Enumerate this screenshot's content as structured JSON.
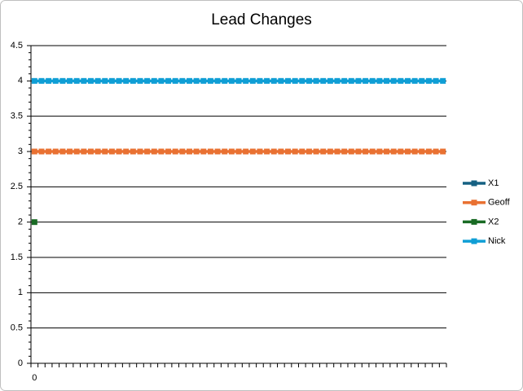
{
  "chart_data": {
    "type": "line",
    "title": "Lead Changes",
    "categories": [
      "0",
      null,
      null,
      null,
      null,
      null,
      null,
      null,
      null,
      null,
      null,
      null,
      null,
      null,
      null,
      null,
      null,
      null,
      null,
      null,
      null,
      null,
      null,
      null,
      null,
      null,
      null,
      null,
      null,
      null,
      null,
      null,
      null,
      null,
      null,
      null,
      null,
      null,
      null,
      null,
      null,
      null,
      null,
      null,
      null,
      null,
      null,
      null,
      null,
      null,
      null,
      null,
      null,
      null,
      null,
      null,
      null,
      null,
      null
    ],
    "series": [
      {
        "name": "X1",
        "color": "#156082",
        "values": [
          null,
          null,
          null,
          null,
          null,
          null,
          null,
          null,
          null,
          null,
          null,
          null,
          null,
          null,
          null,
          null,
          null,
          null,
          null,
          null,
          null,
          null,
          null,
          null,
          null,
          null,
          null,
          null,
          null,
          null,
          null,
          null,
          null,
          null,
          null,
          null,
          null,
          null,
          null,
          null,
          null,
          null,
          null,
          null,
          null,
          null,
          null,
          null,
          null,
          null,
          null,
          null,
          null,
          null,
          null,
          null,
          null,
          null,
          null
        ]
      },
      {
        "name": "Geoff",
        "color": "#e97132",
        "values": [
          3,
          3,
          3,
          3,
          3,
          3,
          3,
          3,
          3,
          3,
          3,
          3,
          3,
          3,
          3,
          3,
          3,
          3,
          3,
          3,
          3,
          3,
          3,
          3,
          3,
          3,
          3,
          3,
          3,
          3,
          3,
          3,
          3,
          3,
          3,
          3,
          3,
          3,
          3,
          3,
          3,
          3,
          3,
          3,
          3,
          3,
          3,
          3,
          3,
          3,
          3,
          3,
          3,
          3,
          3,
          3,
          3,
          3,
          3
        ]
      },
      {
        "name": "X2",
        "color": "#196b24",
        "values": [
          2,
          null,
          null,
          null,
          null,
          null,
          null,
          null,
          null,
          null,
          null,
          null,
          null,
          null,
          null,
          null,
          null,
          null,
          null,
          null,
          null,
          null,
          null,
          null,
          null,
          null,
          null,
          null,
          null,
          null,
          null,
          null,
          null,
          null,
          null,
          null,
          null,
          null,
          null,
          null,
          null,
          null,
          null,
          null,
          null,
          null,
          null,
          null,
          null,
          null,
          null,
          null,
          null,
          null,
          null,
          null,
          null,
          null,
          null
        ]
      },
      {
        "name": "Nick",
        "color": "#0f9ed5",
        "values": [
          4,
          4,
          4,
          4,
          4,
          4,
          4,
          4,
          4,
          4,
          4,
          4,
          4,
          4,
          4,
          4,
          4,
          4,
          4,
          4,
          4,
          4,
          4,
          4,
          4,
          4,
          4,
          4,
          4,
          4,
          4,
          4,
          4,
          4,
          4,
          4,
          4,
          4,
          4,
          4,
          4,
          4,
          4,
          4,
          4,
          4,
          4,
          4,
          4,
          4,
          4,
          4,
          4,
          4,
          4,
          4,
          4,
          4,
          4
        ]
      }
    ],
    "ylim": [
      0,
      4.5
    ],
    "yticks": [
      0,
      0.5,
      1,
      1.5,
      2,
      2.5,
      3,
      3.5,
      4,
      4.5
    ],
    "grid": true,
    "legend": "right"
  }
}
